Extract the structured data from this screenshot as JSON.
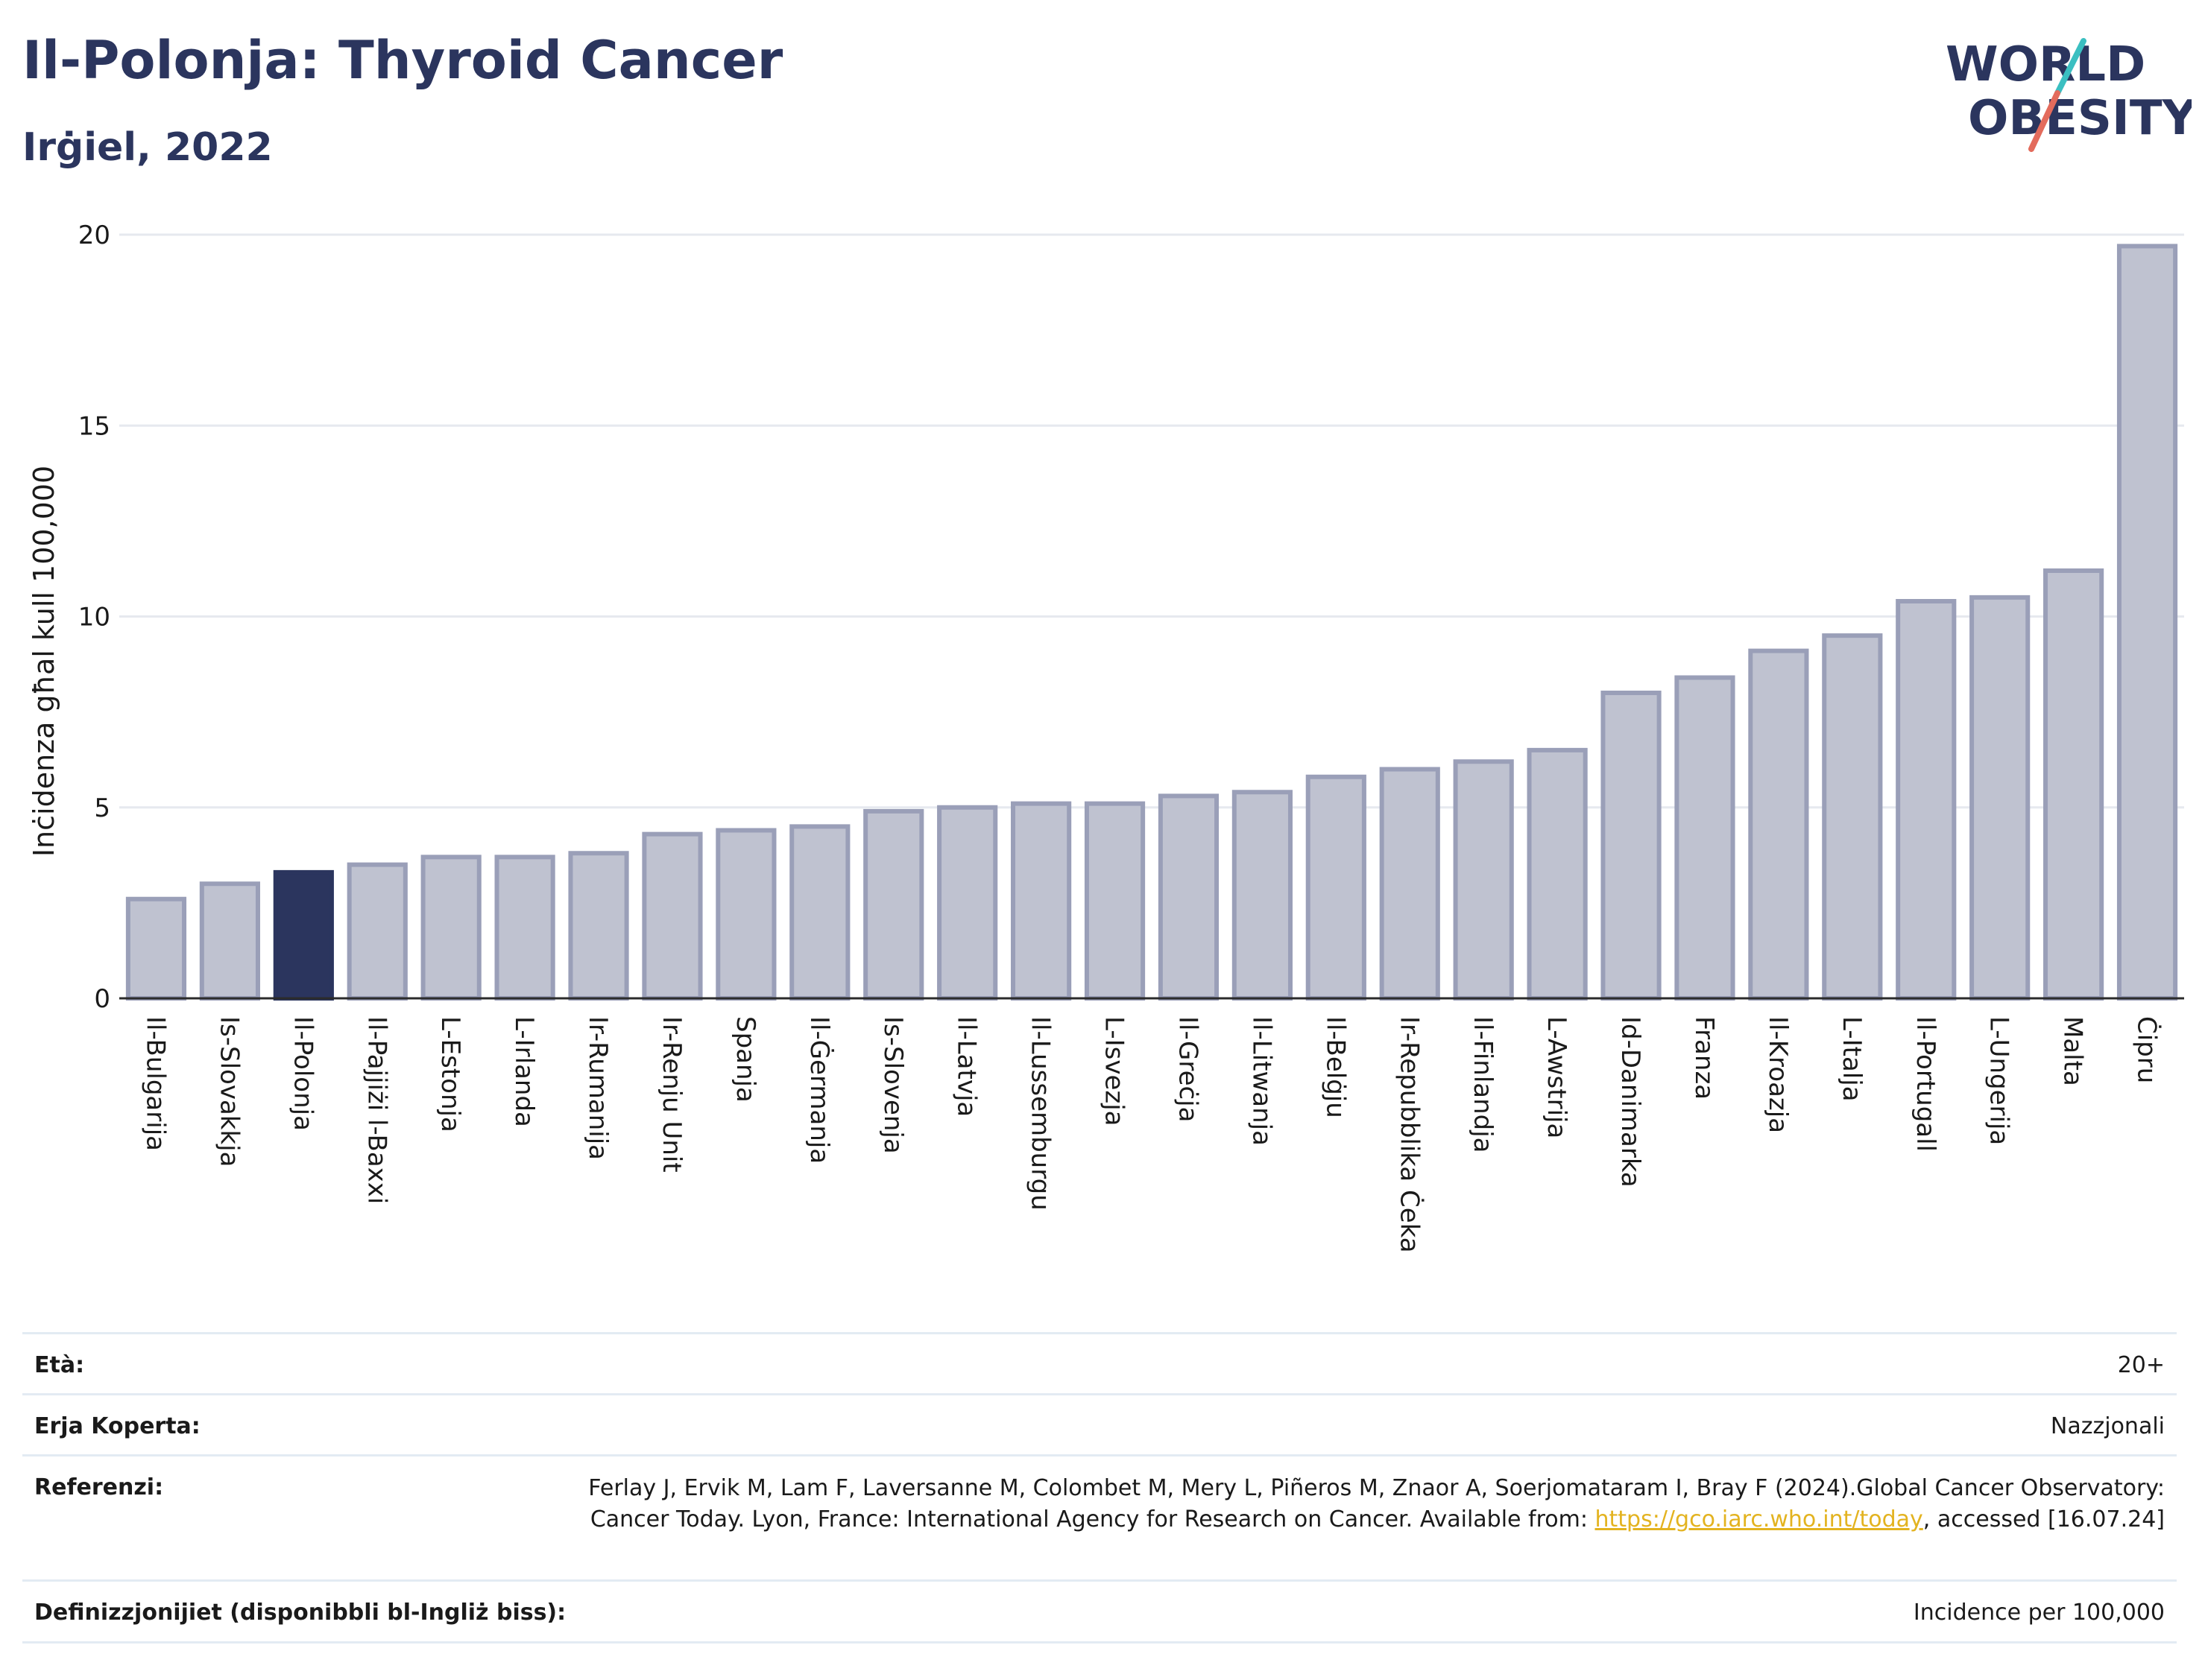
{
  "header": {
    "title": "Il-Polonja: Thyroid Cancer",
    "subtitle": "Irġiel, 2022"
  },
  "logo": {
    "line1": "WORLD",
    "line2": "OBESITY",
    "colors": {
      "text": "#2b355e",
      "slash_teal": "#3bbfc1",
      "slash_red": "#e36b5c"
    }
  },
  "chart_data": {
    "type": "bar",
    "ylabel": "Inċidenza għal kull 100,000",
    "ylim": [
      0,
      20
    ],
    "yticks": [
      0,
      5,
      10,
      15,
      20
    ],
    "grid": true,
    "highlight_category": "Il-Polonja",
    "colors": {
      "bar": "#bfc2d0",
      "bar_border": "#9a9fb8",
      "highlight": "#2b355e",
      "grid": "#e6e9ef"
    },
    "categories": [
      "Il-Bulgarija",
      "Is-Slovakkja",
      "Il-Polonja",
      "Il-Pajjiżi l-Baxxi",
      "L-Estonja",
      "L-Irlanda",
      "Ir-Rumanija",
      "Ir-Renju Unit",
      "Spanja",
      "Il-Ġermanja",
      "Is-Slovenja",
      "Il-Latvja",
      "Il-Lussemburgu",
      "L-Isvezja",
      "Il-Greċja",
      "Il-Litwanja",
      "Il-Belġju",
      "Ir-Repubblika Ċeka",
      "Il-Finlandja",
      "L-Awstrija",
      "Id-Danimarka",
      "Franza",
      "Il-Kroazja",
      "L-Italja",
      "Il-Portugall",
      "L-Ungerija",
      "Malta",
      "Ċipru"
    ],
    "values": [
      2.6,
      3.0,
      3.3,
      3.5,
      3.7,
      3.7,
      3.8,
      4.3,
      4.4,
      4.5,
      4.9,
      5.0,
      5.1,
      5.1,
      5.3,
      5.4,
      5.8,
      6.0,
      6.2,
      6.5,
      8.0,
      8.4,
      9.1,
      9.5,
      10.4,
      10.5,
      11.2,
      19.7
    ]
  },
  "meta": {
    "age_label": "Età:",
    "age_value": "20+",
    "area_label": "Erja Koperta:",
    "area_value": "Nazzjonali",
    "ref_label": "Referenzi:",
    "ref_text_1": "Ferlay J, Ervik M, Lam F, Laversanne M, Colombet M, Mery L, Piñeros M, Znaor A, Soerjomataram I, Bray F (2024).Global Cancer Observatory: Cancer Today. Lyon, France: International Agency for Research on Cancer. Available from: ",
    "ref_link": "https://gco.iarc.who.int/today",
    "ref_text_2": ", accessed [16.07.24]",
    "def_label": "Definizzjonijiet (disponibbli bl-Ingliż biss):",
    "def_value": "Incidence per 100,000"
  }
}
